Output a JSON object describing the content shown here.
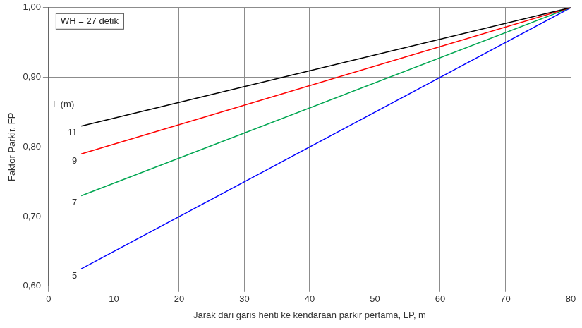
{
  "chart_data": {
    "type": "line",
    "x_label": "Jarak dari garis henti ke kendaraan parkir pertama, LP, m",
    "y_label": "Faktor Parkir, FP",
    "annotations": [
      "WH = 27 detik"
    ],
    "legend_title": "L (m)",
    "series": [
      {
        "name": "11",
        "color": "#000000",
        "x": [
          5,
          80
        ],
        "values": [
          0.83,
          1.0
        ]
      },
      {
        "name": "9",
        "color": "#ff0000",
        "x": [
          5,
          80
        ],
        "values": [
          0.79,
          1.0
        ]
      },
      {
        "name": "7",
        "color": "#00a651",
        "x": [
          5,
          80
        ],
        "values": [
          0.73,
          1.0
        ]
      },
      {
        "name": "5",
        "color": "#0000ff",
        "x": [
          5,
          80
        ],
        "values": [
          0.625,
          1.0
        ]
      }
    ],
    "xlim": [
      0,
      80
    ],
    "xticks": [
      0,
      10,
      20,
      30,
      40,
      50,
      60,
      70,
      80
    ],
    "ylim": [
      0.6,
      1.0
    ],
    "yticks": [
      {
        "value": 0.6,
        "label": "0,60"
      },
      {
        "value": 0.7,
        "label": "0,70"
      },
      {
        "value": 0.8,
        "label": "0,80"
      },
      {
        "value": 0.9,
        "label": "0,90"
      },
      {
        "value": 1.0,
        "label": "1,00"
      }
    ],
    "grid": true
  }
}
